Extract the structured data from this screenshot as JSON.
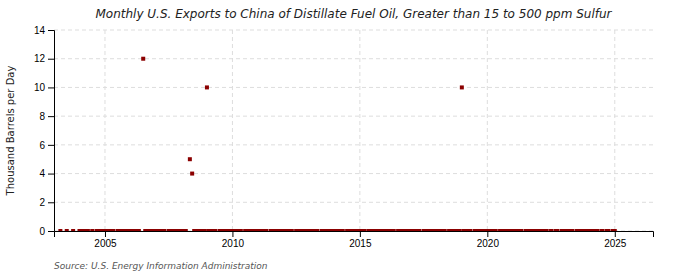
{
  "chart_data": {
    "type": "scatter",
    "title": "Monthly U.S. Exports to China of Distillate Fuel Oil, Greater than 15 to 500 ppm Sulfur",
    "ylabel": "Thousand Barrels per Day",
    "source": "Source: U.S. Energy Information Administration",
    "color": "#8b0000",
    "marker": "square",
    "grid": true,
    "xlim": [
      2003.0,
      2026.5
    ],
    "ylim": [
      0,
      14
    ],
    "xticks": [
      2005,
      2010,
      2015,
      2020,
      2025
    ],
    "yticks": [
      0,
      2,
      4,
      6,
      8,
      10,
      12,
      14
    ],
    "x": [
      2003.25,
      2003.5,
      2003.75,
      2004.0,
      2004.08,
      2004.17,
      2004.25,
      2004.33,
      2004.5,
      2004.67,
      2004.75,
      2004.83,
      2004.92,
      2005.0,
      2005.08,
      2005.17,
      2005.25,
      2005.33,
      2005.5,
      2005.58,
      2005.67,
      2005.75,
      2005.83,
      2005.92,
      2006.0,
      2006.08,
      2006.17,
      2006.25,
      2006.33,
      2006.5,
      2006.58,
      2006.67,
      2006.75,
      2006.83,
      2006.92,
      2007.0,
      2007.08,
      2007.17,
      2007.25,
      2007.33,
      2007.5,
      2007.58,
      2007.67,
      2007.75,
      2007.83,
      2007.92,
      2008.0,
      2008.08,
      2008.17,
      2008.33,
      2008.42,
      2008.5,
      2008.58,
      2008.67,
      2008.75,
      2008.83,
      2008.92,
      2009.0,
      2009.08,
      2009.17,
      2009.25,
      2009.33,
      2009.5,
      2009.58,
      2009.67,
      2009.75,
      2009.83,
      2009.92,
      2010.0,
      2010.08,
      2010.17,
      2010.25,
      2010.33,
      2010.5,
      2010.58,
      2010.67,
      2010.75,
      2010.83,
      2010.92,
      2011.0,
      2011.08,
      2011.17,
      2011.25,
      2011.33,
      2011.5,
      2011.58,
      2011.67,
      2011.75,
      2011.83,
      2011.92,
      2012.0,
      2012.08,
      2012.17,
      2012.25,
      2012.33,
      2012.5,
      2012.58,
      2012.67,
      2012.75,
      2012.83,
      2012.92,
      2013.0,
      2013.08,
      2013.17,
      2013.25,
      2013.33,
      2013.5,
      2013.58,
      2013.67,
      2013.75,
      2013.83,
      2013.92,
      2014.0,
      2014.08,
      2014.17,
      2014.25,
      2014.33,
      2014.5,
      2014.58,
      2014.67,
      2014.75,
      2014.83,
      2014.92,
      2015.0,
      2015.08,
      2015.17,
      2015.33,
      2015.42,
      2015.5,
      2015.58,
      2015.67,
      2015.75,
      2015.83,
      2015.92,
      2016.0,
      2016.08,
      2016.17,
      2016.25,
      2016.33,
      2016.5,
      2016.58,
      2016.67,
      2016.75,
      2016.83,
      2016.92,
      2017.0,
      2017.08,
      2017.17,
      2017.25,
      2017.33,
      2017.5,
      2017.58,
      2017.67,
      2017.75,
      2017.83,
      2017.92,
      2018.0,
      2018.08,
      2018.17,
      2018.25,
      2018.33,
      2018.5,
      2018.58,
      2018.67,
      2018.75,
      2018.83,
      2018.92,
      2019.0,
      2019.08,
      2019.17,
      2019.25,
      2019.33,
      2019.5,
      2019.58,
      2019.67,
      2019.75,
      2019.83,
      2019.92,
      2020.0,
      2020.08,
      2020.17,
      2020.25,
      2020.33,
      2020.5,
      2020.58,
      2020.67,
      2020.75,
      2020.83,
      2020.92,
      2021.0,
      2021.08,
      2021.17,
      2021.25,
      2021.33,
      2021.5,
      2021.58,
      2021.67,
      2021.75,
      2021.83,
      2021.92,
      2022.0,
      2022.08,
      2022.17,
      2022.25,
      2022.33,
      2022.5,
      2022.67,
      2022.75,
      2022.92,
      2023.0,
      2023.08,
      2023.17,
      2023.25,
      2023.33,
      2023.5,
      2023.58,
      2023.67,
      2023.75,
      2023.83,
      2023.92,
      2024.0,
      2024.08,
      2024.17,
      2024.25,
      2024.33,
      2024.5,
      2024.67,
      2024.75,
      2024.92,
      2025.0
    ],
    "values": [
      0.0,
      0.0,
      0.0,
      0.0,
      0.0,
      0.0,
      0.0,
      0.0,
      0.0,
      0.0,
      0.0,
      0.0,
      0.0,
      0.0,
      0.0,
      0.0,
      0.0,
      0.0,
      0.0,
      0.0,
      0.0,
      0.0,
      0.0,
      0.0,
      0.0,
      0.0,
      0.0,
      0.0,
      0.0,
      12.0,
      0.0,
      0.0,
      0.0,
      0.0,
      0.0,
      0.0,
      0.0,
      0.0,
      0.0,
      0.0,
      0.0,
      0.0,
      0.0,
      0.0,
      0.0,
      0.0,
      0.0,
      0.0,
      0.0,
      5.0,
      4.0,
      0.0,
      0.0,
      0.0,
      0.0,
      0.0,
      0.0,
      10.0,
      0.0,
      0.0,
      0.0,
      0.0,
      0.0,
      0.0,
      0.0,
      0.0,
      0.0,
      0.0,
      0.0,
      0.0,
      0.0,
      0.0,
      0.0,
      0.0,
      0.0,
      0.0,
      0.0,
      0.0,
      0.0,
      0.0,
      0.0,
      0.0,
      0.0,
      0.0,
      0.0,
      0.0,
      0.0,
      0.0,
      0.0,
      0.0,
      0.0,
      0.0,
      0.0,
      0.0,
      0.0,
      0.0,
      0.0,
      0.0,
      0.0,
      0.0,
      0.0,
      0.0,
      0.0,
      0.0,
      0.0,
      0.0,
      0.0,
      0.0,
      0.0,
      0.0,
      0.0,
      0.0,
      0.0,
      0.0,
      0.0,
      0.0,
      0.0,
      0.0,
      0.0,
      0.0,
      0.0,
      0.0,
      0.0,
      0.0,
      0.0,
      0.0,
      0.0,
      0.0,
      0.0,
      0.0,
      0.0,
      0.0,
      0.0,
      0.0,
      0.0,
      0.0,
      0.0,
      0.0,
      0.0,
      0.0,
      0.0,
      0.0,
      0.0,
      0.0,
      0.0,
      0.0,
      0.0,
      0.0,
      0.0,
      0.0,
      0.0,
      0.0,
      0.0,
      0.0,
      0.0,
      0.0,
      0.0,
      0.0,
      0.0,
      0.0,
      0.0,
      0.0,
      0.0,
      0.0,
      0.0,
      0.0,
      0.0,
      10.0,
      0.0,
      0.0,
      0.0,
      0.0,
      0.0,
      0.0,
      0.0,
      0.0,
      0.0,
      0.0,
      0.0,
      0.0,
      0.0,
      0.0,
      0.0,
      0.0,
      0.0,
      0.0,
      0.0,
      0.0,
      0.0,
      0.0,
      0.0,
      0.0,
      0.0,
      0.0,
      0.0,
      0.0,
      0.0,
      0.0,
      0.0,
      0.0,
      0.0,
      0.0,
      0.0,
      0.0,
      0.0,
      0.0,
      0.0,
      0.0,
      0.0,
      0.0,
      0.0,
      0.0,
      0.0,
      0.0,
      0.0,
      0.0,
      0.0,
      0.0,
      0.0,
      0.0,
      0.0,
      0.0,
      0.0,
      0.0,
      0.0,
      0.0,
      0.0,
      0.0,
      0.0,
      0.0
    ]
  }
}
